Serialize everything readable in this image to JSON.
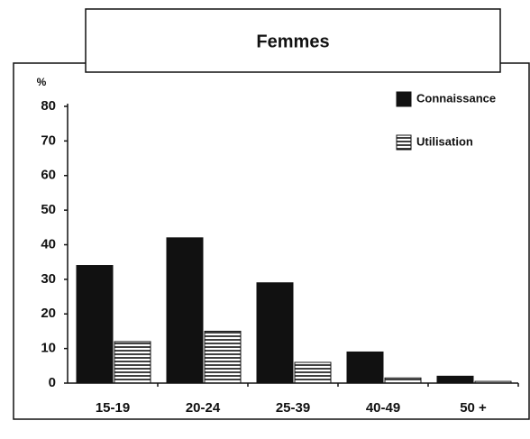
{
  "chart_data": {
    "type": "bar",
    "title": "Femmes",
    "y_label": "%",
    "categories": [
      "15-19",
      "20-24",
      "25-39",
      "40-49",
      "50 +"
    ],
    "series": [
      {
        "name": "Connaissance",
        "color": "#111111",
        "values": [
          34,
          42,
          29,
          9,
          2
        ]
      },
      {
        "name": "Utilisation",
        "color": "#111111",
        "values": [
          12,
          15,
          6,
          1.5,
          0.5
        ]
      }
    ],
    "ylim": [
      0,
      80
    ],
    "yticks": [
      0,
      10,
      20,
      30,
      40,
      50,
      60,
      70,
      80
    ],
    "legend": "top-right"
  }
}
